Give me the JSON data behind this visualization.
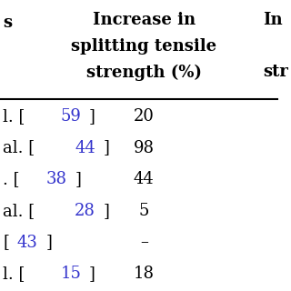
{
  "header_col1": "s",
  "header_col2_line1": "Increase in",
  "header_col2_line2": "splitting tensile",
  "header_col2_line3": "strength (%)",
  "header_col3": "In",
  "header_col3_sub": "str",
  "rows": [
    {
      "label_black": "l. [",
      "cite": "59",
      "label_end": "]",
      "val": "20"
    },
    {
      "label_black": "al. [",
      "cite": "44",
      "label_end": "]",
      "val": "98"
    },
    {
      "label_black": ". [",
      "cite": "38",
      "label_end": "]",
      "val": "44"
    },
    {
      "label_black": "al. [",
      "cite": "28",
      "label_end": "]",
      "val": "5"
    },
    {
      "label_black": "[",
      "cite": "43",
      "label_end": "]",
      "val": "–"
    },
    {
      "label_black": "l. [",
      "cite": "15",
      "label_end": "]",
      "val": "18"
    }
  ],
  "bg_color": "#ffffff",
  "text_color": "#000000",
  "cite_color": "#3333cc",
  "header_fontsize": 13,
  "body_fontsize": 13
}
